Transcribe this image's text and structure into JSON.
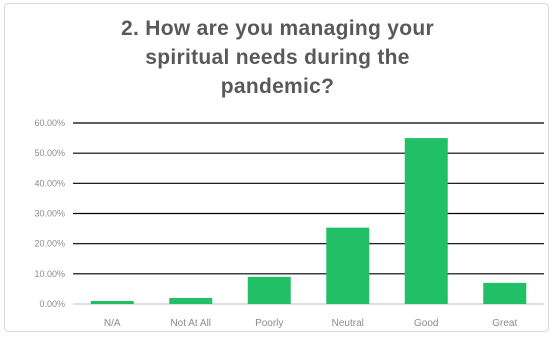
{
  "chart_data": {
    "type": "bar",
    "title_lines": [
      "2. How are you managing your",
      "spiritual needs during the",
      "pandemic?"
    ],
    "categories": [
      "N/A",
      "Not At All",
      "Poorly",
      "Neutral",
      "Good",
      "Great"
    ],
    "values": [
      1.0,
      2.0,
      9.0,
      25.3,
      55.0,
      7.0
    ],
    "yticks": [
      "0.00%",
      "10.00%",
      "20.00%",
      "30.00%",
      "40.00%",
      "50.00%",
      "60.00%"
    ],
    "ylim": [
      0,
      60
    ],
    "grid": true,
    "colors": {
      "bar": "#22c066",
      "grid": "#000000",
      "text": "#595959"
    }
  }
}
